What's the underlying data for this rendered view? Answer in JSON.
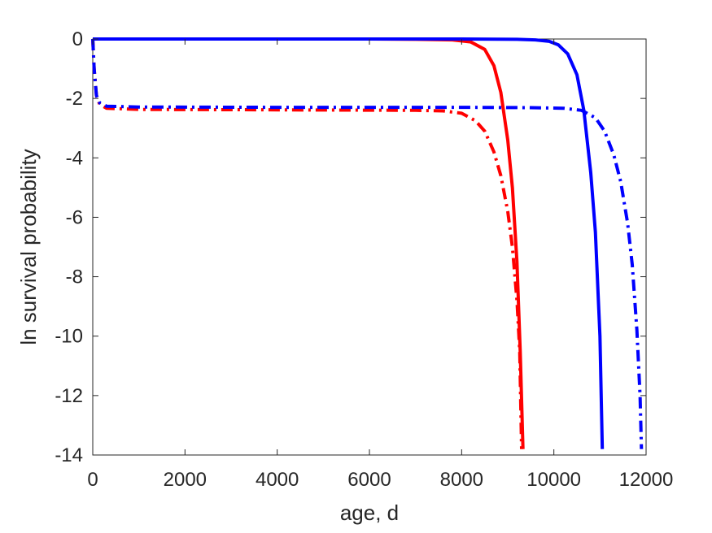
{
  "chart_data": {
    "type": "line",
    "title": "",
    "xlabel": "age, d",
    "ylabel": "ln survival probability",
    "xlim": [
      0,
      12000
    ],
    "ylim": [
      -14,
      0
    ],
    "xticks": [
      0,
      2000,
      4000,
      6000,
      8000,
      10000,
      12000
    ],
    "yticks": [
      0,
      -2,
      -4,
      -6,
      -8,
      -10,
      -12,
      -14
    ],
    "grid": false,
    "legend": "none",
    "series": [
      {
        "color": "#ff0000",
        "style": "solid",
        "points": [
          [
            0,
            0
          ],
          [
            2000,
            0
          ],
          [
            4000,
            0
          ],
          [
            6000,
            0
          ],
          [
            7000,
            -0.01
          ],
          [
            7800,
            -0.03
          ],
          [
            8200,
            -0.1
          ],
          [
            8500,
            -0.35
          ],
          [
            8700,
            -0.9
          ],
          [
            8850,
            -1.8
          ],
          [
            9000,
            -3.4
          ],
          [
            9100,
            -5.0
          ],
          [
            9200,
            -7.5
          ],
          [
            9270,
            -10.5
          ],
          [
            9330,
            -13.8
          ]
        ]
      },
      {
        "color": "#ff0000",
        "style": "dashdot",
        "points": [
          [
            0,
            0
          ],
          [
            30,
            -1.0
          ],
          [
            80,
            -1.9
          ],
          [
            150,
            -2.2
          ],
          [
            300,
            -2.33
          ],
          [
            1000,
            -2.37
          ],
          [
            3000,
            -2.38
          ],
          [
            5000,
            -2.39
          ],
          [
            7000,
            -2.4
          ],
          [
            7600,
            -2.42
          ],
          [
            8000,
            -2.5
          ],
          [
            8300,
            -2.75
          ],
          [
            8500,
            -3.1
          ],
          [
            8700,
            -3.8
          ],
          [
            8850,
            -4.6
          ],
          [
            9000,
            -5.8
          ],
          [
            9100,
            -7.0
          ],
          [
            9200,
            -8.8
          ],
          [
            9260,
            -10.5
          ],
          [
            9300,
            -13.8
          ]
        ]
      },
      {
        "color": "#0000ff",
        "style": "solid",
        "points": [
          [
            0,
            0
          ],
          [
            4000,
            0
          ],
          [
            8000,
            0
          ],
          [
            9200,
            -0.01
          ],
          [
            9600,
            -0.03
          ],
          [
            9900,
            -0.08
          ],
          [
            10100,
            -0.2
          ],
          [
            10300,
            -0.5
          ],
          [
            10500,
            -1.2
          ],
          [
            10650,
            -2.4
          ],
          [
            10800,
            -4.5
          ],
          [
            10900,
            -6.5
          ],
          [
            11000,
            -10.0
          ],
          [
            11050,
            -13.8
          ]
        ]
      },
      {
        "color": "#0000ff",
        "style": "dashdot",
        "points": [
          [
            0,
            0
          ],
          [
            30,
            -1.0
          ],
          [
            80,
            -1.9
          ],
          [
            150,
            -2.15
          ],
          [
            300,
            -2.26
          ],
          [
            1000,
            -2.29
          ],
          [
            4000,
            -2.3
          ],
          [
            8000,
            -2.3
          ],
          [
            9500,
            -2.31
          ],
          [
            10200,
            -2.33
          ],
          [
            10600,
            -2.4
          ],
          [
            10900,
            -2.65
          ],
          [
            11100,
            -3.1
          ],
          [
            11300,
            -3.9
          ],
          [
            11450,
            -4.8
          ],
          [
            11600,
            -6.2
          ],
          [
            11700,
            -7.6
          ],
          [
            11800,
            -9.8
          ],
          [
            11870,
            -12.0
          ],
          [
            11900,
            -13.8
          ]
        ]
      }
    ]
  }
}
